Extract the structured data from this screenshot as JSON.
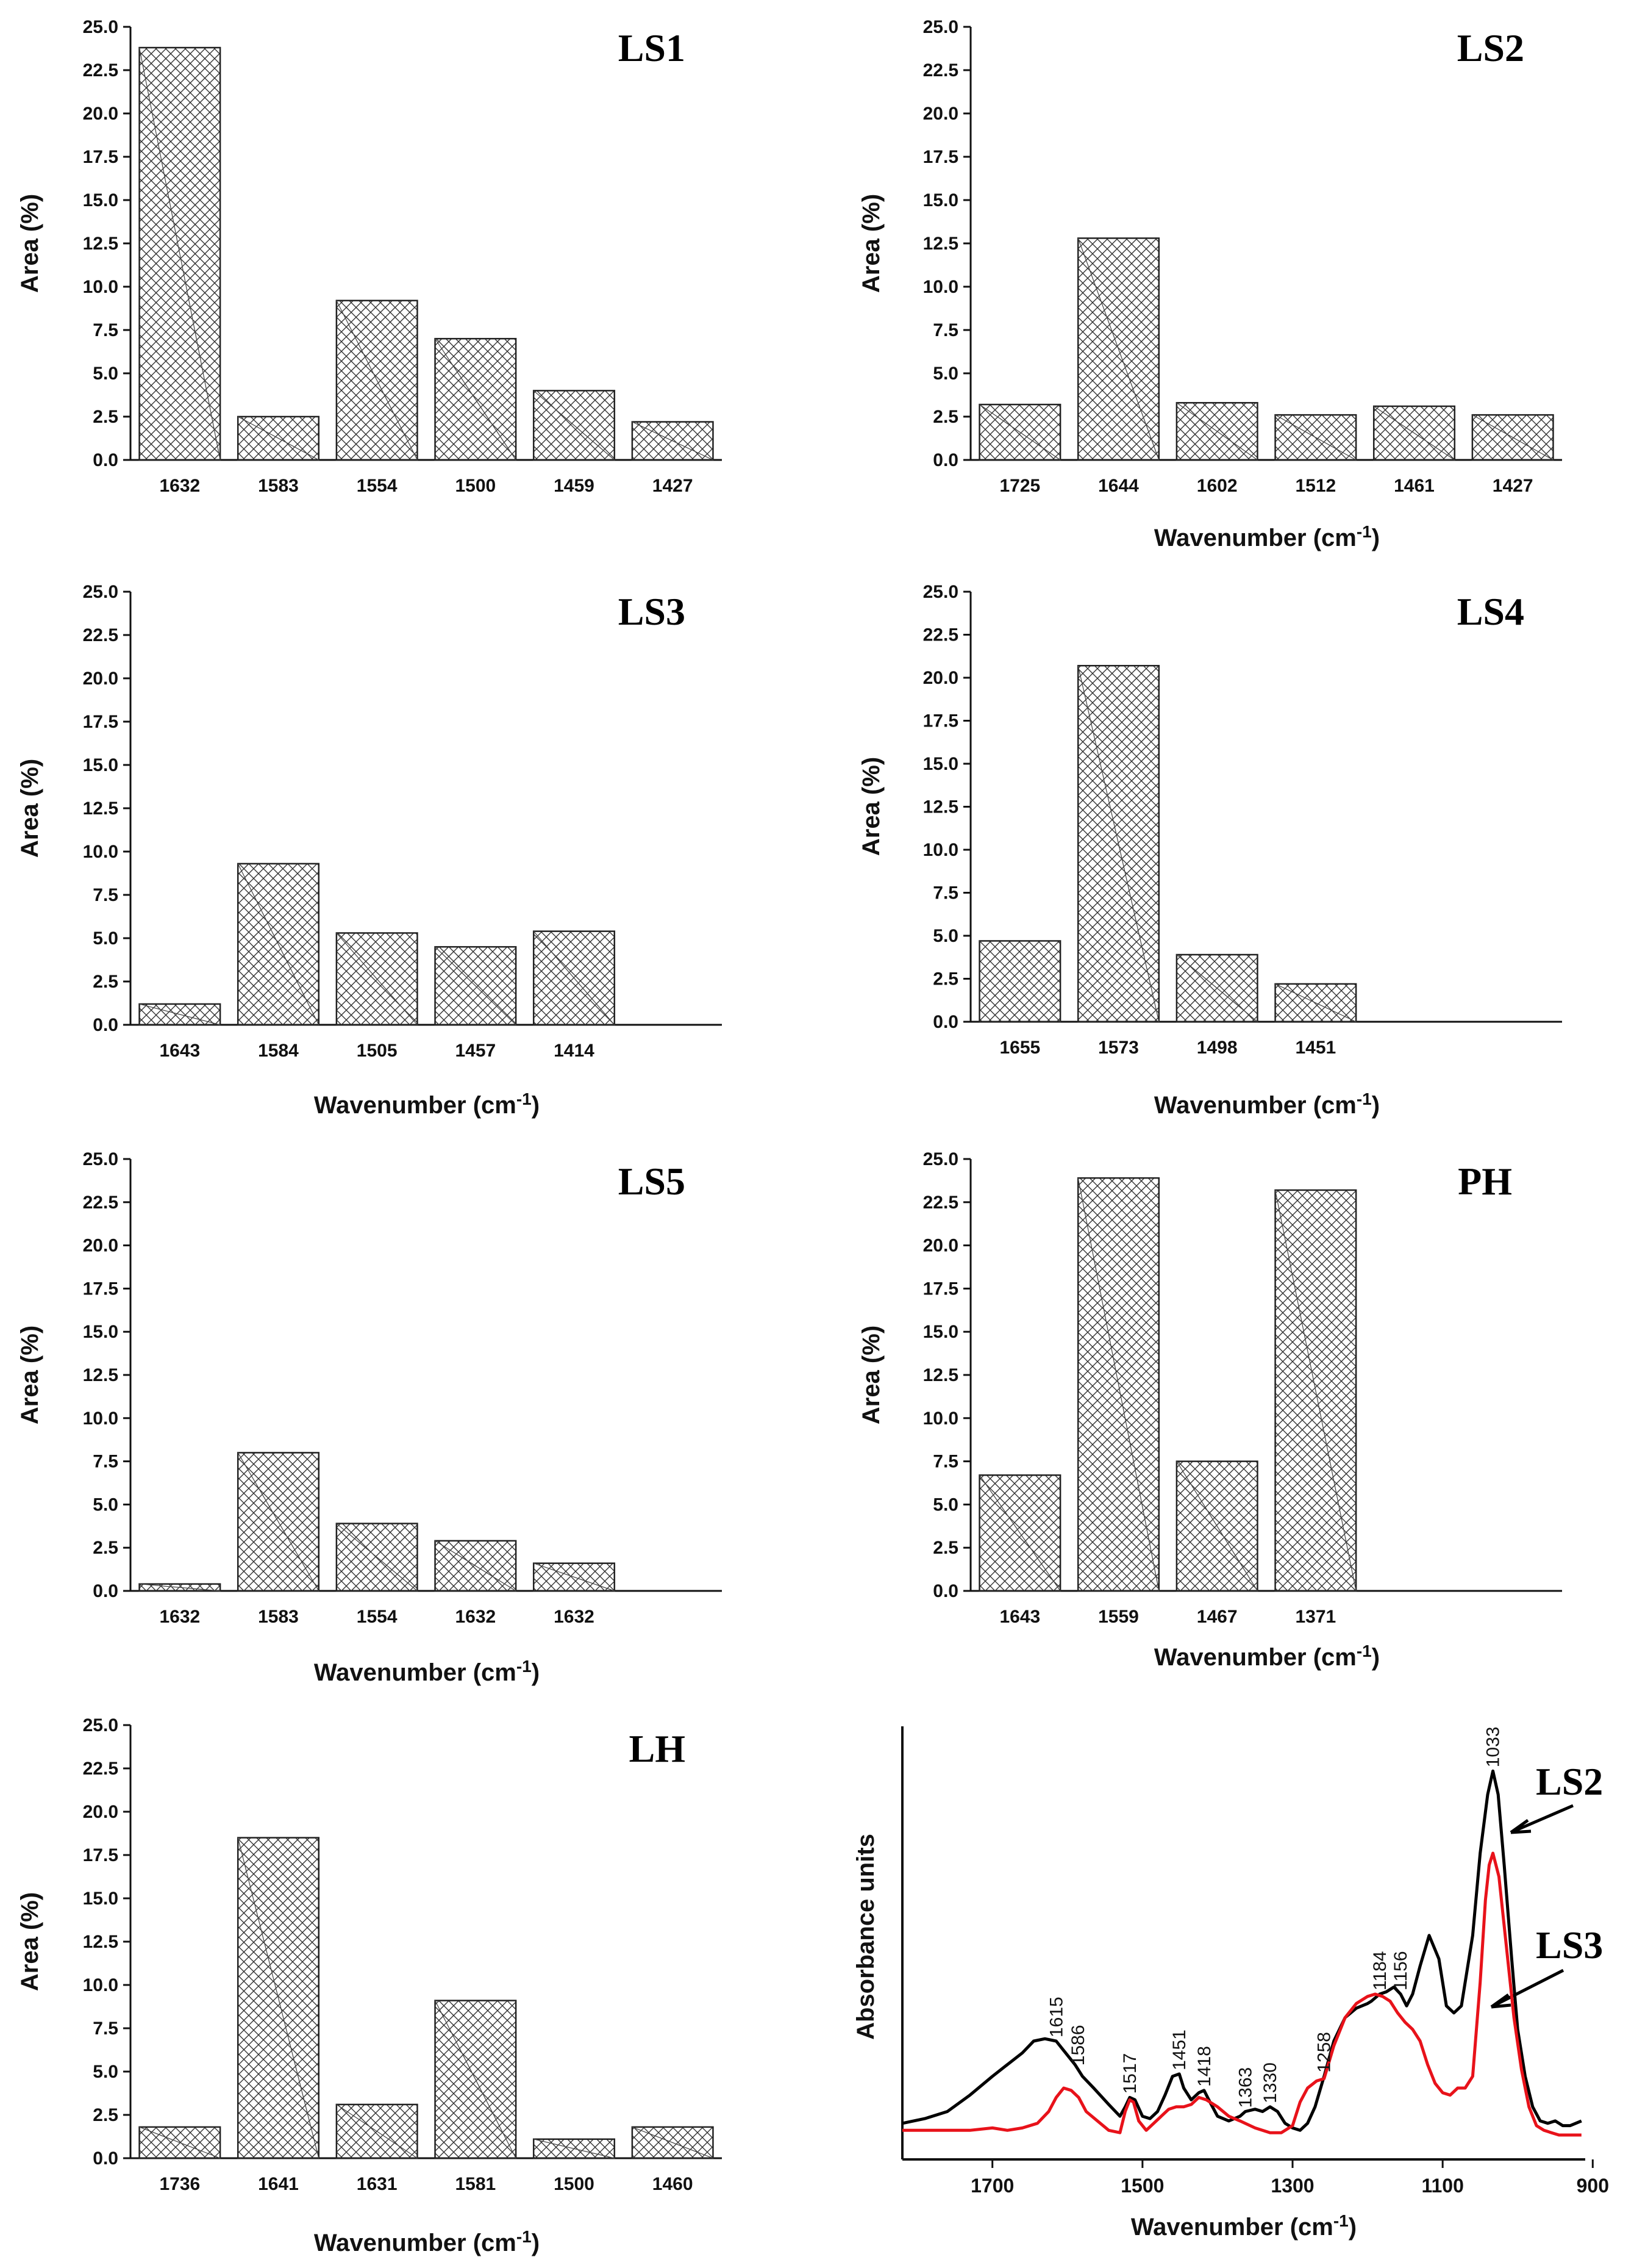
{
  "colors": {
    "hatch": "#333333",
    "axis": "#111111",
    "ls2_line": "#000000",
    "ls3_line": "#e8121a"
  },
  "chart_data": [
    {
      "type": "bar",
      "title": "LS1",
      "ylabel": "Area (%)",
      "xlabel": "",
      "categories": [
        "1632",
        "1583",
        "1554",
        "1500",
        "1459",
        "1427"
      ],
      "values": [
        23.8,
        2.5,
        9.2,
        7.0,
        4.0,
        2.2
      ],
      "ylim": [
        0,
        25
      ],
      "yticks": [
        "0.0",
        "2.5",
        "5.0",
        "7.5",
        "10.0",
        "12.5",
        "15.0",
        "17.5",
        "20.0",
        "22.5",
        "25.0"
      ]
    },
    {
      "type": "bar",
      "title": "LS2",
      "ylabel": "Area (%)",
      "xlabel": "Wavenumber (cm",
      "categories": [
        "1725",
        "1644",
        "1602",
        "1512",
        "1461",
        "1427"
      ],
      "values": [
        3.2,
        12.8,
        3.3,
        2.6,
        3.1,
        2.6
      ],
      "ylim": [
        0,
        25
      ],
      "yticks": [
        "0.0",
        "2.5",
        "5.0",
        "7.5",
        "10.0",
        "12.5",
        "15.0",
        "17.5",
        "20.0",
        "22.5",
        "25.0"
      ]
    },
    {
      "type": "bar",
      "title": "LS3",
      "ylabel": "Area (%)",
      "xlabel": "Wavenumber (cm",
      "categories": [
        "1643",
        "1584",
        "1505",
        "1457",
        "1414"
      ],
      "values": [
        1.2,
        9.3,
        5.3,
        4.5,
        5.4
      ],
      "ylim": [
        0,
        25
      ],
      "yticks": [
        "0.0",
        "2.5",
        "5.0",
        "7.5",
        "10.0",
        "12.5",
        "15.0",
        "17.5",
        "20.0",
        "22.5",
        "25.0"
      ]
    },
    {
      "type": "bar",
      "title": "LS4",
      "ylabel": "Area (%)",
      "xlabel": "Wavenumber (cm",
      "categories": [
        "1655",
        "1573",
        "1498",
        "1451"
      ],
      "values": [
        4.7,
        20.7,
        3.9,
        2.2
      ],
      "ylim": [
        0,
        25
      ],
      "yticks": [
        "0.0",
        "2.5",
        "5.0",
        "7.5",
        "10.0",
        "12.5",
        "15.0",
        "17.5",
        "20.0",
        "22.5",
        "25.0"
      ]
    },
    {
      "type": "bar",
      "title": "LS5",
      "ylabel": "Area (%)",
      "xlabel": "Wavenumber (cm",
      "categories": [
        "1632",
        "1583",
        "1554",
        "1632",
        "1632"
      ],
      "values": [
        0.4,
        8.0,
        3.9,
        2.9,
        1.6
      ],
      "ylim": [
        0,
        25
      ],
      "yticks": [
        "0.0",
        "2.5",
        "5.0",
        "7.5",
        "10.0",
        "12.5",
        "15.0",
        "17.5",
        "20.0",
        "22.5",
        "25.0"
      ]
    },
    {
      "type": "bar",
      "title": "PH",
      "ylabel": "Area (%)",
      "xlabel": "Wavenumber (cm",
      "categories": [
        "1643",
        "1559",
        "1467",
        "1371"
      ],
      "values": [
        6.7,
        23.9,
        7.5,
        23.2
      ],
      "ylim": [
        0,
        25
      ],
      "yticks": [
        "0.0",
        "2.5",
        "5.0",
        "7.5",
        "10.0",
        "12.5",
        "15.0",
        "17.5",
        "20.0",
        "22.5",
        "25.0"
      ]
    },
    {
      "type": "bar",
      "title": "LH",
      "ylabel": "Area (%)",
      "xlabel": "Wavenumber (cm",
      "categories": [
        "1736",
        "1641",
        "1631",
        "1581",
        "1500",
        "1460"
      ],
      "values": [
        1.8,
        18.5,
        3.1,
        9.1,
        1.1,
        1.8
      ],
      "ylim": [
        0,
        25
      ],
      "yticks": [
        "0.0",
        "2.5",
        "5.0",
        "7.5",
        "10.0",
        "12.5",
        "15.0",
        "17.5",
        "20.0",
        "22.5",
        "25.0"
      ]
    },
    {
      "type": "line",
      "ylabel": "Absorbance units",
      "xlabel": "Wavenumber (cm",
      "xlim": [
        1820,
        910
      ],
      "xticks": [
        "1700",
        "1500",
        "1300",
        "1100",
        "900"
      ],
      "xtick_values": [
        1700,
        1500,
        1300,
        1100,
        900
      ],
      "peak_labels": [
        "1615",
        "1586",
        "1517",
        "1451",
        "1418",
        "1363",
        "1330",
        "1258",
        "1184",
        "1156",
        "1033"
      ],
      "peak_values": [
        1615,
        1586,
        1517,
        1451,
        1418,
        1363,
        1330,
        1258,
        1184,
        1156,
        1033
      ],
      "series": [
        {
          "name": "LS2",
          "x": [
            1820,
            1790,
            1760,
            1730,
            1700,
            1680,
            1660,
            1645,
            1630,
            1615,
            1605,
            1590,
            1580,
            1565,
            1545,
            1530,
            1523,
            1517,
            1510,
            1500,
            1490,
            1480,
            1470,
            1460,
            1451,
            1445,
            1435,
            1425,
            1418,
            1410,
            1400,
            1385,
            1370,
            1363,
            1350,
            1340,
            1330,
            1320,
            1310,
            1300,
            1290,
            1280,
            1270,
            1258,
            1245,
            1230,
            1215,
            1200,
            1195,
            1184,
            1175,
            1165,
            1156,
            1148,
            1140,
            1130,
            1118,
            1105,
            1095,
            1085,
            1075,
            1060,
            1050,
            1040,
            1033,
            1026,
            1018,
            1008,
            1000,
            990,
            980,
            970,
            960,
            950,
            940,
            930,
            915
          ],
          "y": [
            0.05,
            0.07,
            0.1,
            0.17,
            0.25,
            0.3,
            0.35,
            0.4,
            0.41,
            0.4,
            0.36,
            0.3,
            0.25,
            0.2,
            0.13,
            0.08,
            0.12,
            0.16,
            0.15,
            0.08,
            0.07,
            0.1,
            0.17,
            0.25,
            0.26,
            0.2,
            0.15,
            0.18,
            0.19,
            0.14,
            0.08,
            0.06,
            0.08,
            0.1,
            0.11,
            0.1,
            0.12,
            0.1,
            0.05,
            0.03,
            0.02,
            0.05,
            0.12,
            0.25,
            0.4,
            0.5,
            0.54,
            0.56,
            0.57,
            0.6,
            0.61,
            0.63,
            0.6,
            0.55,
            0.6,
            0.72,
            0.85,
            0.75,
            0.55,
            0.52,
            0.55,
            0.85,
            1.2,
            1.45,
            1.55,
            1.45,
            1.15,
            0.75,
            0.45,
            0.25,
            0.12,
            0.06,
            0.05,
            0.06,
            0.04,
            0.04,
            0.06
          ]
        },
        {
          "name": "LS3",
          "x": [
            1820,
            1790,
            1760,
            1730,
            1700,
            1680,
            1660,
            1640,
            1625,
            1615,
            1605,
            1595,
            1585,
            1575,
            1560,
            1545,
            1530,
            1523,
            1517,
            1512,
            1505,
            1495,
            1485,
            1475,
            1465,
            1455,
            1445,
            1435,
            1425,
            1415,
            1400,
            1385,
            1370,
            1350,
            1330,
            1315,
            1300,
            1290,
            1280,
            1268,
            1258,
            1245,
            1230,
            1215,
            1200,
            1190,
            1180,
            1170,
            1160,
            1150,
            1140,
            1130,
            1120,
            1110,
            1100,
            1090,
            1080,
            1070,
            1060,
            1050,
            1043,
            1038,
            1033,
            1025,
            1015,
            1005,
            995,
            985,
            975,
            965,
            955,
            945,
            935,
            925,
            915
          ],
          "y": [
            0.02,
            0.02,
            0.02,
            0.02,
            0.03,
            0.02,
            0.03,
            0.05,
            0.1,
            0.16,
            0.2,
            0.19,
            0.16,
            0.1,
            0.06,
            0.02,
            0.01,
            0.1,
            0.15,
            0.14,
            0.06,
            0.02,
            0.05,
            0.08,
            0.11,
            0.12,
            0.12,
            0.13,
            0.16,
            0.15,
            0.12,
            0.08,
            0.06,
            0.03,
            0.01,
            0.01,
            0.04,
            0.14,
            0.2,
            0.23,
            0.24,
            0.38,
            0.5,
            0.56,
            0.59,
            0.6,
            0.59,
            0.57,
            0.52,
            0.48,
            0.45,
            0.4,
            0.3,
            0.22,
            0.18,
            0.17,
            0.2,
            0.2,
            0.25,
            0.65,
            1.0,
            1.15,
            1.2,
            1.1,
            0.8,
            0.5,
            0.28,
            0.12,
            0.04,
            0.02,
            0.01,
            0.0,
            0.0,
            0.0,
            0.0
          ]
        }
      ],
      "annotations": [
        "LS2",
        "LS3"
      ]
    }
  ]
}
